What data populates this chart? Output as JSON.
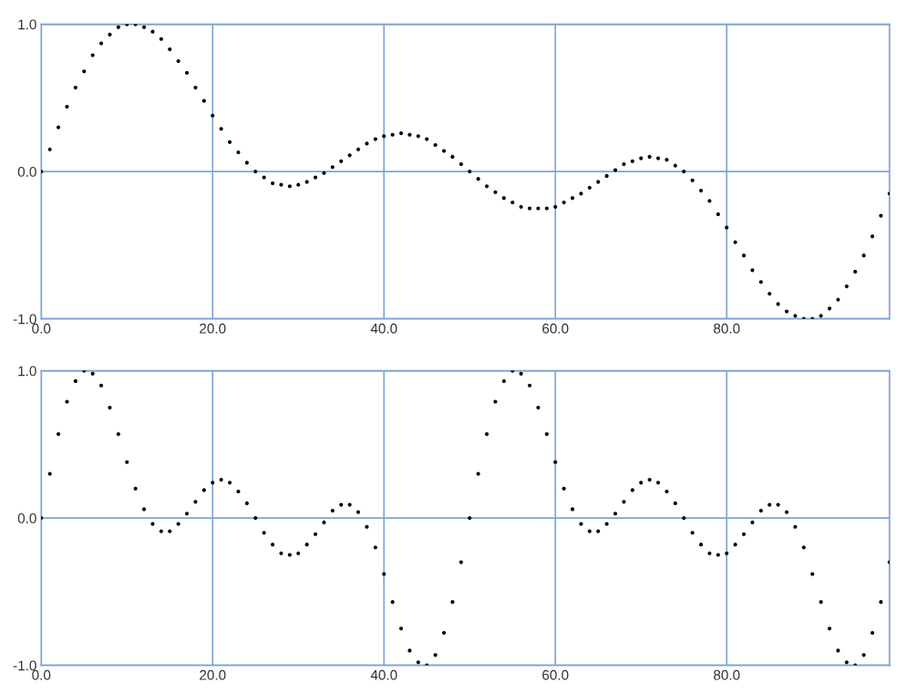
{
  "chart_data": [
    {
      "type": "scatter",
      "marker": "circle",
      "grid": true,
      "xlim": [
        0,
        99
      ],
      "ylim": [
        -1,
        1
      ],
      "xticks": [
        {
          "value": 0,
          "label": "0.0"
        },
        {
          "value": 20,
          "label": "20.0"
        },
        {
          "value": 40,
          "label": "40.0"
        },
        {
          "value": 60,
          "label": "60.0"
        },
        {
          "value": 80,
          "label": "80.0"
        }
      ],
      "yticks": [
        {
          "value": -1,
          "label": "-1.0"
        },
        {
          "value": 0,
          "label": "0.0"
        },
        {
          "value": 1,
          "label": "1.0"
        }
      ],
      "series": [
        {
          "color": "#000000",
          "x": [
            0,
            1,
            2,
            3,
            4,
            5,
            6,
            7,
            8,
            9,
            10,
            11,
            12,
            13,
            14,
            15,
            16,
            17,
            18,
            19,
            20,
            21,
            22,
            23,
            24,
            25,
            26,
            27,
            28,
            29,
            30,
            31,
            32,
            33,
            34,
            35,
            36,
            37,
            38,
            39,
            40,
            41,
            42,
            43,
            44,
            45,
            46,
            47,
            48,
            49,
            50,
            51,
            52,
            53,
            54,
            55,
            56,
            57,
            58,
            59,
            60,
            61,
            62,
            63,
            64,
            65,
            66,
            67,
            68,
            69,
            70,
            71,
            72,
            73,
            74,
            75,
            76,
            77,
            78,
            79,
            80,
            81,
            82,
            83,
            84,
            85,
            86,
            87,
            88,
            89,
            90,
            91,
            92,
            93,
            94,
            95,
            96,
            97,
            98,
            99
          ],
          "values": [
            0,
            0.15,
            0.3,
            0.44,
            0.57,
            0.68,
            0.79,
            0.87,
            0.93,
            0.98,
            1.0,
            1.0,
            0.98,
            0.95,
            0.9,
            0.83,
            0.75,
            0.67,
            0.57,
            0.48,
            0.38,
            0.29,
            0.2,
            0.13,
            0.06,
            0,
            -0.04,
            -0.08,
            -0.09,
            -0.1,
            -0.09,
            -0.07,
            -0.04,
            -0.01,
            0.03,
            0.07,
            0.11,
            0.15,
            0.19,
            0.22,
            0.24,
            0.25,
            0.26,
            0.25,
            0.24,
            0.22,
            0.18,
            0.14,
            0.1,
            0.05,
            0,
            -0.05,
            -0.1,
            -0.14,
            -0.18,
            -0.21,
            -0.24,
            -0.25,
            -0.25,
            -0.25,
            -0.24,
            -0.21,
            -0.18,
            -0.15,
            -0.11,
            -0.07,
            -0.03,
            0.01,
            0.05,
            0.07,
            0.09,
            0.1,
            0.09,
            0.08,
            0.04,
            0,
            -0.06,
            -0.13,
            -0.2,
            -0.29,
            -0.38,
            -0.48,
            -0.57,
            -0.67,
            -0.75,
            -0.83,
            -0.9,
            -0.95,
            -0.98,
            -1.0,
            -1.0,
            -0.98,
            -0.93,
            -0.87,
            -0.78,
            -0.68,
            -0.57,
            -0.44,
            -0.3,
            -0.15
          ]
        }
      ]
    },
    {
      "type": "scatter",
      "marker": "circle",
      "grid": true,
      "xlim": [
        0,
        99
      ],
      "ylim": [
        -1,
        1
      ],
      "xticks": [
        {
          "value": 0,
          "label": "0.0"
        },
        {
          "value": 20,
          "label": "20.0"
        },
        {
          "value": 40,
          "label": "40.0"
        },
        {
          "value": 60,
          "label": "60.0"
        },
        {
          "value": 80,
          "label": "80.0"
        }
      ],
      "yticks": [
        {
          "value": -1,
          "label": "-1.0"
        },
        {
          "value": 0,
          "label": "0.0"
        },
        {
          "value": 1,
          "label": "1.0"
        }
      ],
      "series": [
        {
          "color": "#000000",
          "x": [
            0,
            1,
            2,
            3,
            4,
            5,
            6,
            7,
            8,
            9,
            10,
            11,
            12,
            13,
            14,
            15,
            16,
            17,
            18,
            19,
            20,
            21,
            22,
            23,
            24,
            25,
            26,
            27,
            28,
            29,
            30,
            31,
            32,
            33,
            34,
            35,
            36,
            37,
            38,
            39,
            40,
            41,
            42,
            43,
            44,
            45,
            46,
            47,
            48,
            49,
            50,
            51,
            52,
            53,
            54,
            55,
            56,
            57,
            58,
            59,
            60,
            61,
            62,
            63,
            64,
            65,
            66,
            67,
            68,
            69,
            70,
            71,
            72,
            73,
            74,
            75,
            76,
            77,
            78,
            79,
            80,
            81,
            82,
            83,
            84,
            85,
            86,
            87,
            88,
            89,
            90,
            91,
            92,
            93,
            94,
            95,
            96,
            97,
            98,
            99
          ],
          "values": [
            0,
            0.3,
            0.57,
            0.79,
            0.93,
            1.0,
            0.98,
            0.9,
            0.75,
            0.57,
            0.38,
            0.2,
            0.06,
            -0.04,
            -0.09,
            -0.09,
            -0.04,
            0.03,
            0.11,
            0.19,
            0.24,
            0.26,
            0.24,
            0.18,
            0.1,
            0,
            -0.1,
            -0.18,
            -0.24,
            -0.25,
            -0.24,
            -0.18,
            -0.11,
            -0.03,
            0.05,
            0.09,
            0.09,
            0.04,
            -0.06,
            -0.2,
            -0.38,
            -0.57,
            -0.75,
            -0.9,
            -0.98,
            -1.0,
            -0.93,
            -0.78,
            -0.57,
            -0.3,
            0,
            0.3,
            0.57,
            0.79,
            0.93,
            1.0,
            0.98,
            0.9,
            0.75,
            0.57,
            0.38,
            0.2,
            0.06,
            -0.04,
            -0.09,
            -0.09,
            -0.04,
            0.03,
            0.11,
            0.19,
            0.24,
            0.26,
            0.24,
            0.18,
            0.1,
            0,
            -0.1,
            -0.18,
            -0.24,
            -0.25,
            -0.24,
            -0.18,
            -0.11,
            -0.03,
            0.05,
            0.09,
            0.09,
            0.04,
            -0.06,
            -0.2,
            -0.38,
            -0.57,
            -0.75,
            -0.9,
            -0.98,
            -1.0,
            -0.93,
            -0.78,
            -0.57,
            -0.3
          ]
        }
      ]
    }
  ]
}
